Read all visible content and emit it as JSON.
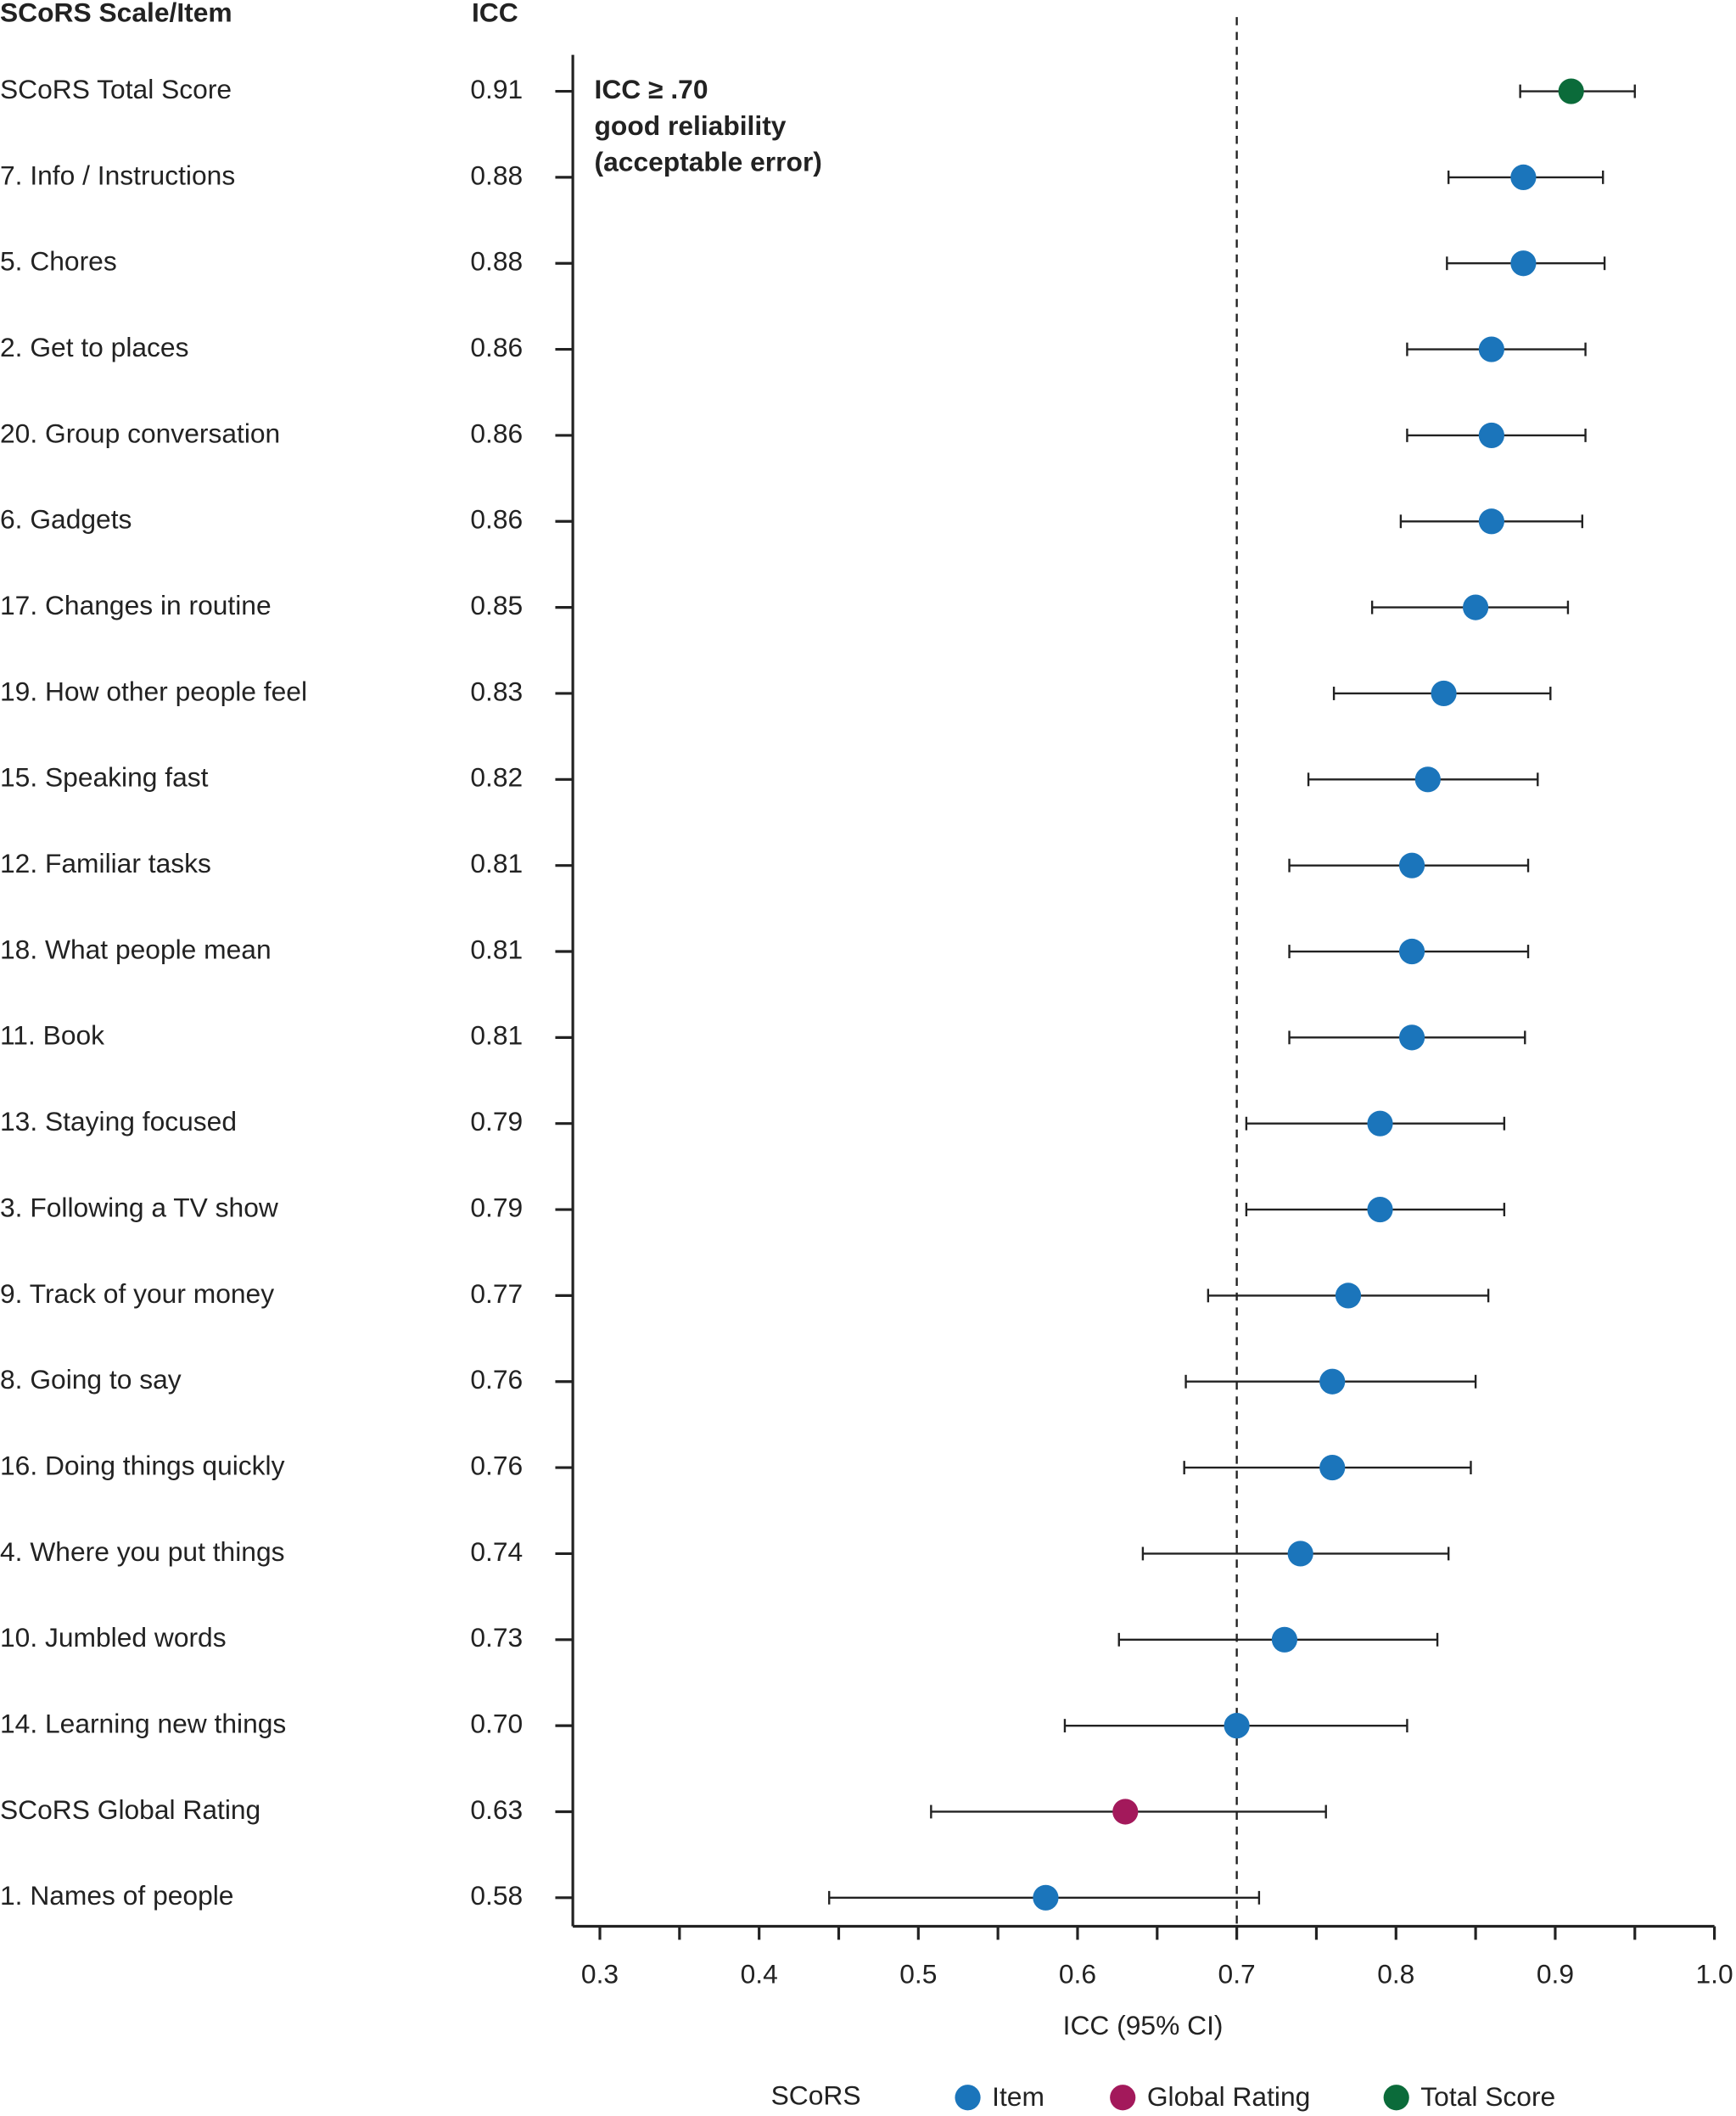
{
  "chart_data": {
    "type": "forest",
    "column_headers": [
      "SCoRS Scale/Item",
      "ICC"
    ],
    "categories": [
      "SCoRS Total Score",
      "7. Info / Instructions",
      "5. Chores",
      "2. Get to places",
      "20. Group conversation",
      "6. Gadgets",
      "17. Changes in routine",
      "19. How other people feel",
      "15. Speaking fast",
      "12. Familiar tasks",
      "18. What people mean",
      "11. Book",
      "13. Staying focused",
      "3. Following a TV show",
      "9. Track of your money",
      "8. Going to say",
      "16. Doing things quickly",
      "4. Where you put things",
      "10. Jumbled words",
      "14. Learning new things",
      "SCoRS Global Rating",
      "1. Names of people"
    ],
    "values": [
      0.91,
      0.88,
      0.88,
      0.86,
      0.86,
      0.86,
      0.85,
      0.83,
      0.82,
      0.81,
      0.81,
      0.81,
      0.79,
      0.79,
      0.77,
      0.76,
      0.76,
      0.74,
      0.73,
      0.7,
      0.63,
      0.58
    ],
    "value_labels": [
      "0.91",
      "0.88",
      "0.88",
      "0.86",
      "0.86",
      "0.86",
      "0.85",
      "0.83",
      "0.82",
      "0.81",
      "0.81",
      "0.81",
      "0.79",
      "0.79",
      "0.77",
      "0.76",
      "0.76",
      "0.74",
      "0.73",
      "0.70",
      "0.63",
      "0.58"
    ],
    "ci_low": [
      0.878,
      0.833,
      0.832,
      0.807,
      0.807,
      0.803,
      0.785,
      0.761,
      0.745,
      0.733,
      0.733,
      0.733,
      0.706,
      0.706,
      0.682,
      0.668,
      0.667,
      0.641,
      0.626,
      0.592,
      0.508,
      0.444
    ],
    "ci_high": [
      0.95,
      0.93,
      0.931,
      0.919,
      0.919,
      0.917,
      0.908,
      0.897,
      0.889,
      0.883,
      0.883,
      0.881,
      0.868,
      0.868,
      0.858,
      0.85,
      0.847,
      0.833,
      0.826,
      0.807,
      0.756,
      0.714
    ],
    "point_series": [
      2,
      0,
      0,
      0,
      0,
      0,
      0,
      0,
      0,
      0,
      0,
      0,
      0,
      0,
      0,
      0,
      0,
      0,
      0,
      0,
      1,
      0
    ],
    "series": [
      {
        "name": "Item",
        "color": "#1b75bb"
      },
      {
        "name": "Global Rating",
        "color": "#a3195b"
      },
      {
        "name": "Total Score",
        "color": "#0b6b3a"
      }
    ],
    "legend_title": "SCoRS",
    "xlabel": "ICC (95% CI)",
    "xlim": [
      0.283,
      1.0
    ],
    "xticks": [
      0.3,
      0.4,
      0.5,
      0.6,
      0.7,
      0.8,
      0.9,
      {
        "value": 1,
        "label": "1.0"
      }
    ],
    "xticks_minor": [
      0.35,
      0.45,
      0.55,
      0.65,
      0.75,
      0.85,
      0.95
    ],
    "reference_line": 0.7,
    "annotation": [
      "ICC ≥  .70",
      "good reliability",
      "(acceptable error)"
    ]
  }
}
